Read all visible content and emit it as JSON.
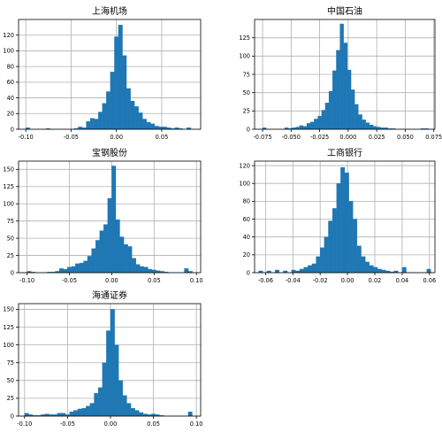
{
  "chart_data": [
    {
      "type": "bar",
      "title": "上海机场",
      "xlim": [
        -0.108,
        0.093
      ],
      "ylim": [
        0,
        140
      ],
      "xticks": [
        -0.1,
        -0.05,
        0.0,
        0.05
      ],
      "xtick_labels": [
        "-0.10",
        "-0.05",
        "0.00",
        "0.05"
      ],
      "yticks": [
        0,
        20,
        40,
        60,
        80,
        100,
        120
      ],
      "ytick_labels": [
        "0",
        "20",
        "40",
        "60",
        "80",
        "100",
        "120"
      ],
      "bin_edges": [
        -0.1,
        -0.0956,
        -0.0911,
        -0.0867,
        -0.0822,
        -0.0778,
        -0.0733,
        -0.0689,
        -0.0644,
        -0.06,
        -0.0556,
        -0.0511,
        -0.0467,
        -0.0422,
        -0.0378,
        -0.0333,
        -0.0289,
        -0.0244,
        -0.02,
        -0.0156,
        -0.0111,
        -0.0067,
        -0.0022,
        0.0022,
        0.0067,
        0.0111,
        0.0156,
        0.02,
        0.0244,
        0.0289,
        0.0333,
        0.0378,
        0.0422,
        0.0467,
        0.0511,
        0.0556,
        0.06,
        0.0644,
        0.0689,
        0.0733,
        0.0778,
        0.0822,
        0.0867
      ],
      "counts": [
        2,
        0,
        0,
        0,
        0,
        1,
        0,
        0,
        0,
        0,
        0,
        0,
        1,
        3,
        2,
        10,
        14,
        13,
        22,
        33,
        48,
        73,
        118,
        133,
        94,
        52,
        36,
        29,
        21,
        13,
        9,
        7,
        4,
        3,
        3,
        2,
        1,
        2,
        1,
        0,
        2,
        0
      ],
      "grid": true,
      "legend": "none"
    },
    {
      "type": "bar",
      "title": "中国石油",
      "xlim": [
        -0.082,
        0.076
      ],
      "ylim": [
        0,
        150
      ],
      "xticks": [
        -0.075,
        -0.05,
        -0.025,
        0.0,
        0.025,
        0.05,
        0.075
      ],
      "xtick_labels": [
        "-0.075",
        "-0.050",
        "-0.025",
        "0.000",
        "0.025",
        "0.050",
        "0.075"
      ],
      "yticks": [
        0,
        25,
        50,
        75,
        100,
        125
      ],
      "ytick_labels": [
        "0",
        "25",
        "50",
        "75",
        "100",
        "125"
      ],
      "bin_edges": [
        -0.075,
        -0.0718,
        -0.0685,
        -0.0653,
        -0.0621,
        -0.0589,
        -0.0556,
        -0.0524,
        -0.0492,
        -0.0459,
        -0.0427,
        -0.0395,
        -0.0363,
        -0.033,
        -0.0298,
        -0.0266,
        -0.0233,
        -0.0201,
        -0.0169,
        -0.0137,
        -0.0104,
        -0.0072,
        -0.004,
        -0.0007,
        0.0025,
        0.0057,
        0.0089,
        0.0122,
        0.0154,
        0.0186,
        0.0219,
        0.0251,
        0.0283,
        0.0316,
        0.0348,
        0.038,
        0.0412,
        0.0445,
        0.0477,
        0.0509,
        0.0542,
        0.0574,
        0.0606,
        0.0638,
        0.0671,
        0.0703
      ],
      "counts": [
        2,
        0,
        0,
        0,
        0,
        0,
        2,
        1,
        2,
        3,
        5,
        4,
        8,
        10,
        14,
        18,
        26,
        36,
        52,
        80,
        108,
        144,
        118,
        81,
        54,
        34,
        20,
        13,
        9,
        6,
        4,
        3,
        2,
        2,
        1,
        1,
        0,
        0,
        0,
        0,
        0,
        0,
        0,
        1,
        1
      ],
      "grid": true,
      "legend": "none"
    },
    {
      "type": "bar",
      "title": "宝钢股份",
      "xlim": [
        -0.11,
        0.105
      ],
      "ylim": [
        0,
        162
      ],
      "xticks": [
        -0.1,
        -0.05,
        0.0,
        0.05,
        0.1
      ],
      "xtick_labels": [
        "-0.10",
        "-0.05",
        "0.00",
        "0.05",
        "0.10"
      ],
      "yticks": [
        0,
        25,
        50,
        75,
        100,
        125,
        150
      ],
      "ytick_labels": [
        "0",
        "25",
        "50",
        "75",
        "100",
        "125",
        "150"
      ],
      "bin_edges": [
        -0.1,
        -0.0952,
        -0.0905,
        -0.0857,
        -0.081,
        -0.0762,
        -0.0714,
        -0.0667,
        -0.0619,
        -0.0571,
        -0.0524,
        -0.0476,
        -0.0429,
        -0.0381,
        -0.0333,
        -0.0286,
        -0.0238,
        -0.019,
        -0.0143,
        -0.0095,
        -0.0048,
        0.0,
        0.0048,
        0.0095,
        0.0143,
        0.019,
        0.0238,
        0.0286,
        0.0333,
        0.0381,
        0.0429,
        0.0476,
        0.0524,
        0.0571,
        0.0619,
        0.0667,
        0.0714,
        0.0762,
        0.081,
        0.0857,
        0.0905,
        0.0952
      ],
      "counts": [
        2,
        1,
        0,
        0,
        0,
        1,
        1,
        2,
        6,
        5,
        8,
        9,
        13,
        14,
        17,
        24,
        35,
        47,
        61,
        70,
        108,
        155,
        77,
        52,
        41,
        38,
        21,
        12,
        9,
        8,
        5,
        4,
        3,
        2,
        1,
        0,
        0,
        0,
        0,
        6,
        2
      ],
      "grid": true,
      "legend": "none"
    },
    {
      "type": "bar",
      "title": "工商银行",
      "xlim": [
        -0.068,
        0.064
      ],
      "ylim": [
        0,
        125
      ],
      "xticks": [
        -0.06,
        -0.04,
        -0.02,
        0.0,
        0.02,
        0.04,
        0.06
      ],
      "xtick_labels": [
        "-0.06",
        "-0.04",
        "-0.02",
        "0.00",
        "0.02",
        "0.04",
        "0.06"
      ],
      "yticks": [
        0,
        20,
        40,
        60,
        80,
        100,
        120
      ],
      "ytick_labels": [
        "0",
        "20",
        "40",
        "60",
        "80",
        "100",
        "120"
      ],
      "bin_edges": [
        -0.065,
        -0.062,
        -0.059,
        -0.056,
        -0.053,
        -0.05,
        -0.047,
        -0.044,
        -0.041,
        -0.038,
        -0.035,
        -0.032,
        -0.029,
        -0.026,
        -0.023,
        -0.02,
        -0.017,
        -0.014,
        -0.011,
        -0.008,
        -0.005,
        -0.002,
        0.001,
        0.004,
        0.007,
        0.01,
        0.013,
        0.016,
        0.019,
        0.022,
        0.025,
        0.028,
        0.031,
        0.034,
        0.037,
        0.04,
        0.043,
        0.046,
        0.049,
        0.052,
        0.055,
        0.058,
        0.061
      ],
      "counts": [
        2,
        0,
        2,
        0,
        3,
        0,
        2,
        0,
        3,
        2,
        4,
        6,
        8,
        10,
        18,
        28,
        40,
        58,
        72,
        100,
        118,
        112,
        80,
        60,
        30,
        18,
        12,
        8,
        6,
        4,
        3,
        2,
        1,
        2,
        0,
        6,
        0,
        0,
        0,
        0,
        0,
        4
      ],
      "grid": true,
      "legend": "none"
    },
    {
      "type": "bar",
      "title": "海通证券",
      "xlim": [
        -0.107,
        0.105
      ],
      "ylim": [
        0,
        158
      ],
      "xticks": [
        -0.1,
        -0.05,
        0.0,
        0.05,
        0.1
      ],
      "xtick_labels": [
        "-0.10",
        "-0.05",
        "0.00",
        "0.05",
        "0.10"
      ],
      "yticks": [
        0,
        25,
        50,
        75,
        100,
        125,
        150
      ],
      "ytick_labels": [
        "0",
        "25",
        "50",
        "75",
        "100",
        "125",
        "150"
      ],
      "bin_edges": [
        -0.1,
        -0.0952,
        -0.0905,
        -0.0857,
        -0.081,
        -0.0762,
        -0.0714,
        -0.0667,
        -0.0619,
        -0.0571,
        -0.0524,
        -0.0476,
        -0.0429,
        -0.0381,
        -0.0333,
        -0.0286,
        -0.0238,
        -0.019,
        -0.0143,
        -0.0095,
        -0.0048,
        0.0,
        0.0048,
        0.0095,
        0.0143,
        0.019,
        0.0238,
        0.0286,
        0.0333,
        0.0381,
        0.0429,
        0.0476,
        0.0524,
        0.0571,
        0.0619,
        0.0667,
        0.0714,
        0.0762,
        0.081,
        0.0857,
        0.0905,
        0.0952
      ],
      "counts": [
        4,
        2,
        1,
        1,
        2,
        3,
        2,
        2,
        4,
        4,
        2,
        6,
        8,
        10,
        11,
        14,
        18,
        32,
        40,
        75,
        120,
        150,
        100,
        50,
        29,
        18,
        11,
        8,
        5,
        3,
        2,
        3,
        2,
        1,
        0,
        0,
        0,
        0,
        0,
        0,
        6
      ],
      "grid": true,
      "legend": "none"
    }
  ],
  "colors": {
    "bar": "#1f77b4",
    "grid": "#b0b0b0",
    "frame": "#000000"
  }
}
